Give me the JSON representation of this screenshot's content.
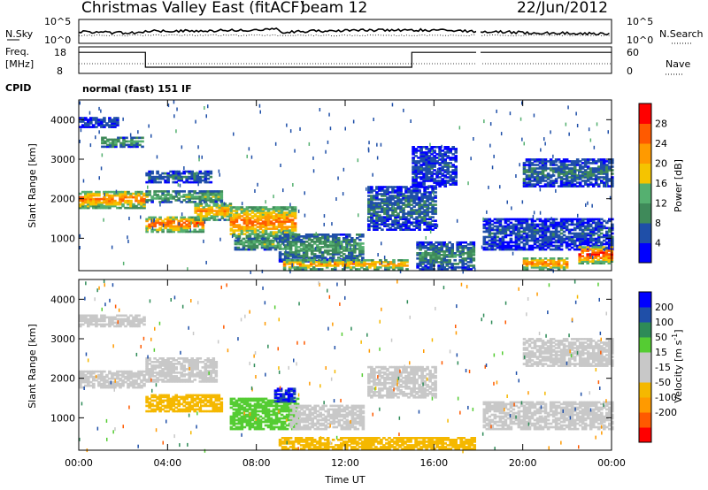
{
  "header": {
    "title": "Christmas Valley East (fitACF)",
    "beam": "beam 12",
    "date": "22/Jun/2012"
  },
  "nsky_panel": {
    "left_label": "N.Sky",
    "right_label": "N.Search",
    "ticks_left": [
      "10^5",
      "10^0"
    ],
    "ticks_right": [
      "10^5",
      "10^0"
    ]
  },
  "freq_panel": {
    "left_label_1": "Freq.",
    "left_label_2": "[MHz]",
    "right_label": "Nave",
    "ticks_left": [
      "18",
      "8"
    ],
    "ticks_right": [
      "60",
      "0"
    ]
  },
  "cpid": {
    "label": "CPID",
    "value": "normal (fast) 151 IF"
  },
  "colors": {
    "power_scale": [
      "#0000ff",
      "#1f4fa8",
      "#3f8a5a",
      "#55b070",
      "#f5c400",
      "#ff9a00",
      "#ff5a00",
      "#ff0000"
    ],
    "velocity_scale": [
      "#ff0000",
      "#ff5a00",
      "#ff9a00",
      "#f5b800",
      "#c8c8c8",
      "#c8c8c8",
      "#55cc33",
      "#2e8b57",
      "#1f4fa8",
      "#0000ff"
    ]
  },
  "chart_data": [
    {
      "type": "heatmap",
      "name": "power",
      "ylabel": "Slant Range [km]",
      "xlabel": "",
      "x_tick_labels": [
        "00:00",
        "04:00",
        "08:00",
        "12:00",
        "16:00",
        "20:00",
        "00:00"
      ],
      "y_tick_labels": [
        "1000",
        "2000",
        "3000",
        "4000"
      ],
      "xlim_hours": [
        0,
        24
      ],
      "ylim_km": [
        180,
        4500
      ],
      "colorbar_label": "Power [dB]",
      "colorbar_ticks": [
        "4",
        "8",
        "12",
        "16",
        "20",
        "24",
        "28"
      ],
      "echo_bands": [
        {
          "t0": 0.0,
          "t1": 2.9,
          "r0": 1750,
          "r1": 2200,
          "p": 24
        },
        {
          "t0": 0.0,
          "t1": 1.8,
          "r0": 3800,
          "r1": 4050,
          "p": 6
        },
        {
          "t0": 1.0,
          "t1": 2.9,
          "r0": 3300,
          "r1": 3550,
          "p": 12
        },
        {
          "t0": 3.0,
          "t1": 5.6,
          "r0": 1150,
          "r1": 1550,
          "p": 26
        },
        {
          "t0": 3.0,
          "t1": 6.4,
          "r0": 1900,
          "r1": 2200,
          "p": 14
        },
        {
          "t0": 3.0,
          "t1": 6.0,
          "r0": 2400,
          "r1": 2700,
          "p": 8
        },
        {
          "t0": 5.2,
          "t1": 6.8,
          "r0": 1450,
          "r1": 1900,
          "p": 22
        },
        {
          "t0": 6.8,
          "t1": 9.7,
          "r0": 1000,
          "r1": 1800,
          "p": 24
        },
        {
          "t0": 7.0,
          "t1": 9.0,
          "r0": 700,
          "r1": 1000,
          "p": 14
        },
        {
          "t0": 9.0,
          "t1": 12.8,
          "r0": 400,
          "r1": 1100,
          "p": 12
        },
        {
          "t0": 9.2,
          "t1": 14.8,
          "r0": 200,
          "r1": 450,
          "p": 22
        },
        {
          "t0": 13.0,
          "t1": 16.0,
          "r0": 1200,
          "r1": 2300,
          "p": 8
        },
        {
          "t0": 15.2,
          "t1": 17.8,
          "r0": 200,
          "r1": 900,
          "p": 10
        },
        {
          "t0": 15.0,
          "t1": 17.0,
          "r0": 2300,
          "r1": 3300,
          "p": 6
        },
        {
          "t0": 18.2,
          "t1": 24.0,
          "r0": 700,
          "r1": 1500,
          "p": 6
        },
        {
          "t0": 20.0,
          "t1": 22.0,
          "r0": 200,
          "r1": 500,
          "p": 24
        },
        {
          "t0": 22.5,
          "t1": 24.0,
          "r0": 350,
          "r1": 800,
          "p": 28
        },
        {
          "t0": 20.0,
          "t1": 24.0,
          "r0": 2300,
          "r1": 3000,
          "p": 8
        }
      ]
    },
    {
      "type": "heatmap",
      "name": "velocity",
      "ylabel": "Slant Range [km]",
      "xlabel": "Time UT",
      "x_tick_labels": [
        "00:00",
        "04:00",
        "08:00",
        "12:00",
        "16:00",
        "20:00",
        "00:00"
      ],
      "y_tick_labels": [
        "1000",
        "2000",
        "3000",
        "4000"
      ],
      "xlim_hours": [
        0,
        24
      ],
      "ylim_km": [
        180,
        4500
      ],
      "colorbar_label": "Velocity [m s-1]",
      "colorbar_ticks": [
        "200",
        "100",
        "50",
        "15",
        "-15",
        "-50",
        "-100",
        "-200"
      ],
      "echo_bands": [
        {
          "t0": 0.0,
          "t1": 2.9,
          "r0": 1750,
          "r1": 2200,
          "v": 0
        },
        {
          "t0": 0.0,
          "t1": 2.9,
          "r0": 3300,
          "r1": 3600,
          "v": 0
        },
        {
          "t0": 3.0,
          "t1": 6.4,
          "r0": 1150,
          "r1": 1600,
          "v": -40
        },
        {
          "t0": 3.0,
          "t1": 6.2,
          "r0": 1900,
          "r1": 2500,
          "v": 0
        },
        {
          "t0": 6.8,
          "t1": 9.8,
          "r0": 700,
          "r1": 1500,
          "v": 30
        },
        {
          "t0": 8.8,
          "t1": 9.7,
          "r0": 1400,
          "r1": 1750,
          "v": 200
        },
        {
          "t0": 9.5,
          "t1": 12.8,
          "r0": 700,
          "r1": 1300,
          "v": 0
        },
        {
          "t0": 9.0,
          "t1": 17.8,
          "r0": 200,
          "r1": 500,
          "v": -40
        },
        {
          "t0": 13.0,
          "t1": 16.0,
          "r0": 1500,
          "r1": 2300,
          "v": 0
        },
        {
          "t0": 18.2,
          "t1": 24.0,
          "r0": 700,
          "r1": 1400,
          "v": 0
        },
        {
          "t0": 20.0,
          "t1": 24.0,
          "r0": 2300,
          "r1": 3000,
          "v": 0
        }
      ]
    }
  ],
  "panel_status": {
    "nsky_trace_level": 3.2,
    "freq_segments": [
      {
        "t0": 0.0,
        "t1": 3.0,
        "mhz": 16.5
      },
      {
        "t0": 3.0,
        "t1": 15.0,
        "mhz": 10.5
      },
      {
        "t0": 15.0,
        "t1": 24.0,
        "mhz": 16.5
      }
    ],
    "data_gap_hours": [
      17.9,
      18.1
    ]
  }
}
